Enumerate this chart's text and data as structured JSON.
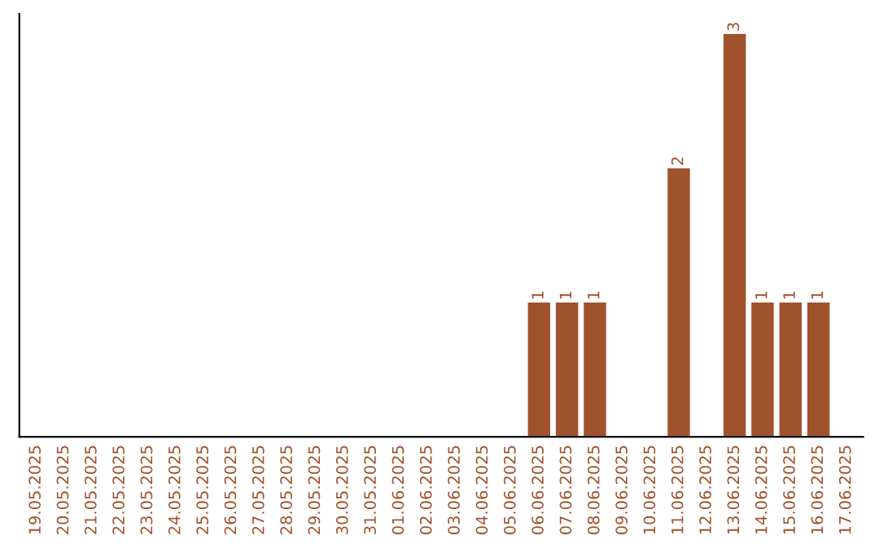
{
  "chart_data": {
    "type": "bar",
    "categories": [
      "19.05.2025",
      "20.05.2025",
      "21.05.2025",
      "22.05.2025",
      "23.05.2025",
      "24.05.2025",
      "25.05.2025",
      "26.05.2025",
      "27.05.2025",
      "28.05.2025",
      "29.05.2025",
      "30.05.2025",
      "31.05.2025",
      "01.06.2025",
      "02.06.2025",
      "03.06.2025",
      "04.06.2025",
      "05.06.2025",
      "06.06.2025",
      "07.06.2025",
      "08.06.2025",
      "09.06.2025",
      "10.06.2025",
      "11.06.2025",
      "12.06.2025",
      "13.06.2025",
      "14.06.2025",
      "15.06.2025",
      "16.06.2025",
      "17.06.2025"
    ],
    "values": [
      null,
      null,
      null,
      null,
      null,
      null,
      null,
      null,
      null,
      null,
      null,
      null,
      null,
      null,
      null,
      null,
      null,
      null,
      1,
      1,
      1,
      null,
      null,
      2,
      null,
      3,
      1,
      1,
      1,
      null
    ],
    "value_labels": [
      null,
      null,
      null,
      null,
      null,
      null,
      null,
      null,
      null,
      null,
      null,
      null,
      null,
      null,
      null,
      null,
      null,
      null,
      "1",
      "1",
      "1",
      null,
      null,
      "2",
      null,
      "3",
      "1",
      "1",
      "1",
      null
    ],
    "color": "#a0522d",
    "tick_labels": "x",
    "grid": false
  }
}
